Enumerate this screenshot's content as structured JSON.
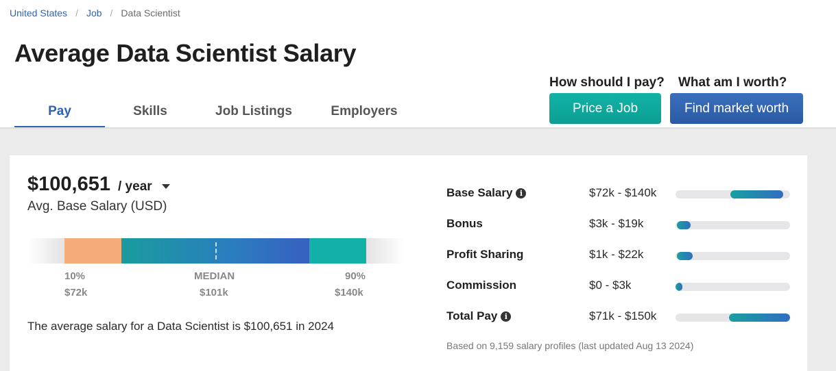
{
  "breadcrumb": {
    "items": [
      "United States",
      "Job"
    ],
    "current": "Data Scientist",
    "separator": "/"
  },
  "title": "Average Data Scientist Salary",
  "tabs": [
    {
      "label": "Pay",
      "active": true
    },
    {
      "label": "Skills",
      "active": false
    },
    {
      "label": "Job Listings",
      "active": false
    },
    {
      "label": "Employers",
      "active": false
    }
  ],
  "cta": {
    "pay_question": "How should I pay?",
    "pay_button": "Price a Job",
    "worth_question": "What am I worth?",
    "worth_button": "Find market worth"
  },
  "salary": {
    "amount": "$100,651",
    "period": "/ year",
    "label": "Avg. Base Salary (USD)",
    "percentiles": [
      {
        "label": "10%",
        "value": "$72k"
      },
      {
        "label": "MEDIAN",
        "value": "$101k"
      },
      {
        "label": "90%",
        "value": "$140k"
      }
    ],
    "summary": "The average salary for a Data Scientist is $100,651 in 2024"
  },
  "components": [
    {
      "name": "Base Salary",
      "info": true,
      "range": "$72k - $140k",
      "fill_start": 0.48,
      "fill_end": 0.94
    },
    {
      "name": "Bonus",
      "info": false,
      "range": "$3k - $19k",
      "fill_start": 0.01,
      "fill_end": 0.13
    },
    {
      "name": "Profit Sharing",
      "info": false,
      "range": "$1k - $22k",
      "fill_start": 0.01,
      "fill_end": 0.15
    },
    {
      "name": "Commission",
      "info": false,
      "range": "$0 - $3k",
      "fill_start": 0.0,
      "fill_end": 0.06
    },
    {
      "name": "Total Pay",
      "info": true,
      "range": "$71k - $150k",
      "fill_start": 0.47,
      "fill_end": 1.0
    }
  ],
  "footnote": "Based on 9,159 salary profiles (last updated Aug 13 2024)",
  "colors": {
    "brand_blue": "#2c64b3",
    "teal": "#12b1a8",
    "orange": "#f6ab7a"
  }
}
